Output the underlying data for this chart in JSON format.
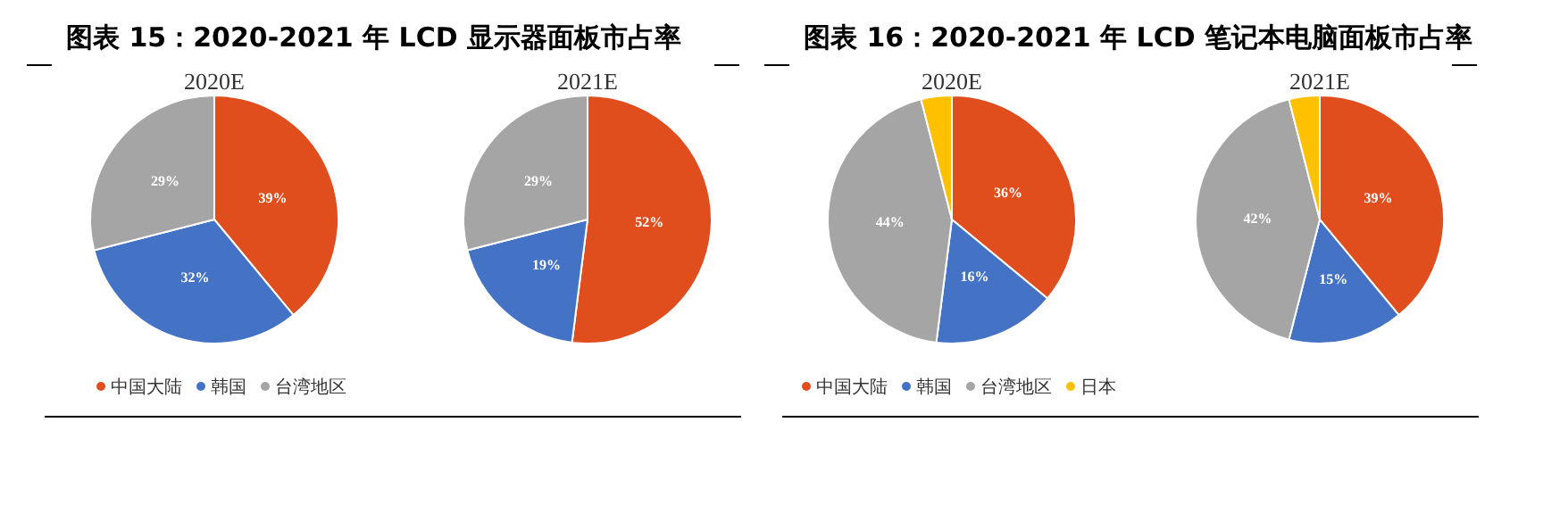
{
  "chart_data": [
    {
      "type": "pie",
      "title": "图表 15：2020-2021 年 LCD 显示器面板市占率",
      "subtitle": "2020E",
      "categories": [
        "中国大陆",
        "韩国",
        "台湾地区"
      ],
      "values": [
        39,
        32,
        29
      ],
      "colors": [
        "#e04e1e",
        "#4472c4",
        "#a5a5a5"
      ],
      "value_labels": [
        "39%",
        "32%",
        "29%"
      ],
      "legend": "bottom"
    },
    {
      "type": "pie",
      "title": "2021E",
      "categories": [
        null,
        null,
        null
      ],
      "values": [
        52,
        19,
        29
      ],
      "colors": [
        "#e04e1e",
        "#4472c4",
        "#a5a5a5"
      ],
      "value_labels": [
        "52%",
        "19%",
        "29%"
      ]
    },
    {
      "type": "pie",
      "title": "图表 16：2020-2021 年 LCD 笔记本电脑面板市占率",
      "subtitle": "2020E",
      "categories": [
        "中国大陆",
        "韩国",
        "台湾地区",
        "日本"
      ],
      "values": [
        36,
        16,
        44,
        4
      ],
      "colors": [
        "#e04e1e",
        "#4472c4",
        "#a5a5a5",
        "#ffc000"
      ],
      "value_labels": [
        "36%",
        "16%",
        "44%",
        null
      ],
      "legend": "bottom"
    },
    {
      "type": "pie",
      "title": "2021E",
      "categories": [
        null,
        null,
        null,
        null
      ],
      "values": [
        39,
        15,
        42,
        4
      ],
      "colors": [
        "#e04e1e",
        "#4472c4",
        "#a5a5a5",
        "#ffc000"
      ],
      "value_labels": [
        "39%",
        "15%",
        "42%",
        null
      ]
    }
  ]
}
